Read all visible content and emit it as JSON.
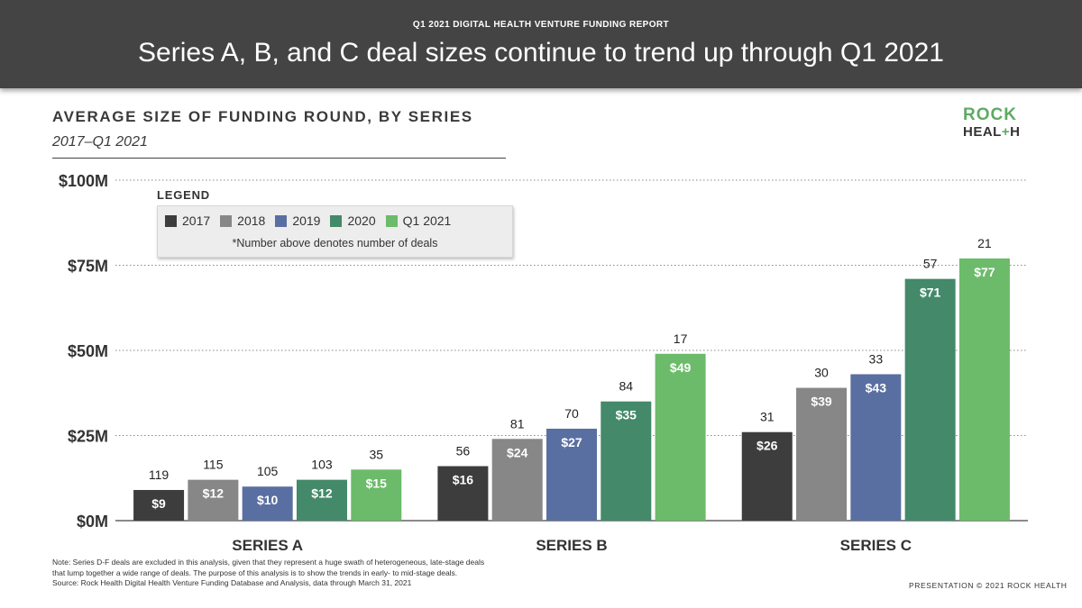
{
  "header": {
    "kicker": "Q1 2021 DIGITAL HEALTH VENTURE FUNDING REPORT",
    "title": "Series A, B, and C deal sizes continue to trend up through Q1 2021"
  },
  "logo": {
    "line1": "ROCK",
    "line2_prefix": "HEAL",
    "line2_plus": "+",
    "line2_suffix": "H"
  },
  "legend": {
    "heading": "LEGEND",
    "note": "*Number above denotes number of deals"
  },
  "footnote": {
    "line1": "Note: Series D-F deals are excluded in this analysis, given that they represent a huge swath of heterogeneous, late-stage deals",
    "line2": "that lump together a wide range of deals. The purpose of this analysis is to show the trends in early- to mid-stage deals.",
    "line3": "Source: Rock Health Digital Health Venture Funding Database and Analysis, data through March 31, 2021"
  },
  "copyright": "PRESENTATION © 2021 ROCK HEALTH",
  "chart_data": {
    "type": "bar",
    "title": "AVERAGE SIZE OF FUNDING ROUND, BY SERIES",
    "subtitle": "2017–Q1 2021",
    "categories": [
      "SERIES A",
      "SERIES B",
      "SERIES C"
    ],
    "ylim": [
      0,
      100
    ],
    "yticks": [
      {
        "value": 0,
        "label": "$0M"
      },
      {
        "value": 25,
        "label": "$25M"
      },
      {
        "value": 50,
        "label": "$50M"
      },
      {
        "value": 75,
        "label": "$75M"
      },
      {
        "value": 100,
        "label": "$100M"
      }
    ],
    "grid": true,
    "legend_position": "top-left",
    "series": [
      {
        "name": "2017",
        "color": "#3d3d3d",
        "values": [
          9,
          16,
          26
        ],
        "value_labels": [
          "$9",
          "$16",
          "$26"
        ],
        "deals": [
          119,
          56,
          31
        ]
      },
      {
        "name": "2018",
        "color": "#878787",
        "values": [
          12,
          24,
          39
        ],
        "value_labels": [
          "$12",
          "$24",
          "$39"
        ],
        "deals": [
          115,
          81,
          30
        ]
      },
      {
        "name": "2019",
        "color": "#5a6fa1",
        "values": [
          10,
          27,
          43
        ],
        "value_labels": [
          "$10",
          "$27",
          "$43"
        ],
        "deals": [
          105,
          70,
          33
        ]
      },
      {
        "name": "2020",
        "color": "#43896a",
        "values": [
          12,
          35,
          71
        ],
        "value_labels": [
          "$12",
          "$35",
          "$71"
        ],
        "deals": [
          103,
          84,
          57
        ]
      },
      {
        "name": "Q1 2021",
        "color": "#6cbb6a",
        "values": [
          15,
          49,
          77
        ],
        "value_labels": [
          "$15",
          "$49",
          "$77"
        ],
        "deals": [
          35,
          17,
          21
        ]
      }
    ]
  }
}
